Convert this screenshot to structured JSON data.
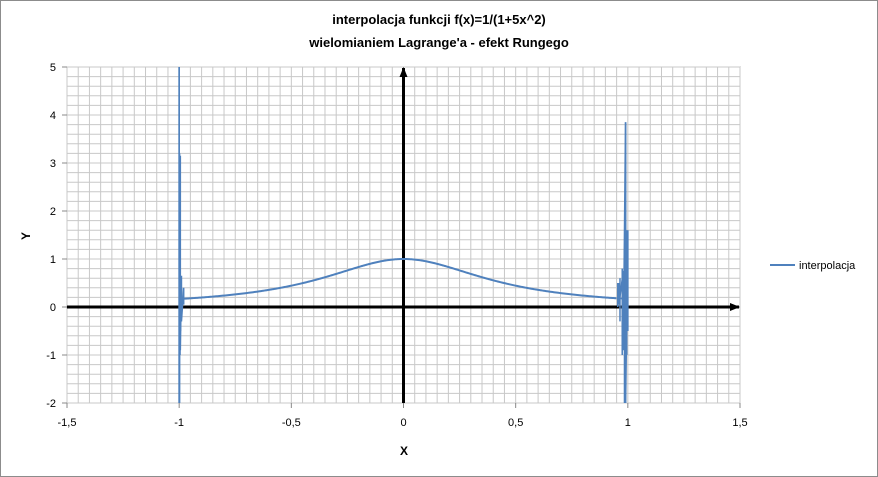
{
  "chart_data": {
    "type": "line",
    "title": "interpolacja funkcji f(x)=1/(1+5x^2)",
    "subtitle": "wielomianiem Lagrange'a - efekt  Rungego",
    "xlabel": "X",
    "ylabel": "Y",
    "xlim": [
      -1.5,
      1.5
    ],
    "ylim": [
      -2,
      5
    ],
    "x_ticks": [
      "-1,5",
      "-1",
      "-0,5",
      "0",
      "0,5",
      "1",
      "1,5"
    ],
    "y_ticks": [
      "-2",
      "-1",
      "0",
      "1",
      "2",
      "3",
      "4",
      "5"
    ],
    "grid": true,
    "legend_position": "right",
    "series": [
      {
        "name": "interpolacja",
        "color": "#4f81bd",
        "function": "1/(1+5x^2)",
        "x": [
          -1.0,
          -0.97,
          -0.9,
          -0.8,
          -0.7,
          -0.6,
          -0.5,
          -0.4,
          -0.3,
          -0.2,
          -0.1,
          0.0,
          0.1,
          0.2,
          0.3,
          0.4,
          0.5,
          0.6,
          0.7,
          0.8,
          0.9,
          0.97,
          1.0
        ],
        "y": [
          0.167,
          0.175,
          0.198,
          0.238,
          0.29,
          0.357,
          0.444,
          0.556,
          0.69,
          0.833,
          0.952,
          1.0,
          0.952,
          0.833,
          0.69,
          0.556,
          0.444,
          0.357,
          0.29,
          0.238,
          0.198,
          0.175,
          0.167
        ],
        "oscillation_spikes_left": [
          {
            "x": -1.0,
            "y": 5.0
          },
          {
            "x": -1.0,
            "y": -2.0
          },
          {
            "x": -0.995,
            "y": 3.15
          },
          {
            "x": -0.995,
            "y": -0.9
          },
          {
            "x": -0.99,
            "y": 0.65
          },
          {
            "x": -0.99,
            "y": -0.3
          },
          {
            "x": -0.98,
            "y": 0.4
          },
          {
            "x": -0.98,
            "y": 0.05
          }
        ],
        "oscillation_spikes_right": [
          {
            "x": 0.96,
            "y": 0.5
          },
          {
            "x": 0.96,
            "y": 0.05
          },
          {
            "x": 0.98,
            "y": 0.75
          },
          {
            "x": 0.98,
            "y": -0.9
          },
          {
            "x": 0.99,
            "y": 3.85
          },
          {
            "x": 0.99,
            "y": -2.0
          },
          {
            "x": 1.0,
            "y": 1.6
          },
          {
            "x": 1.0,
            "y": -0.5
          }
        ]
      }
    ]
  }
}
